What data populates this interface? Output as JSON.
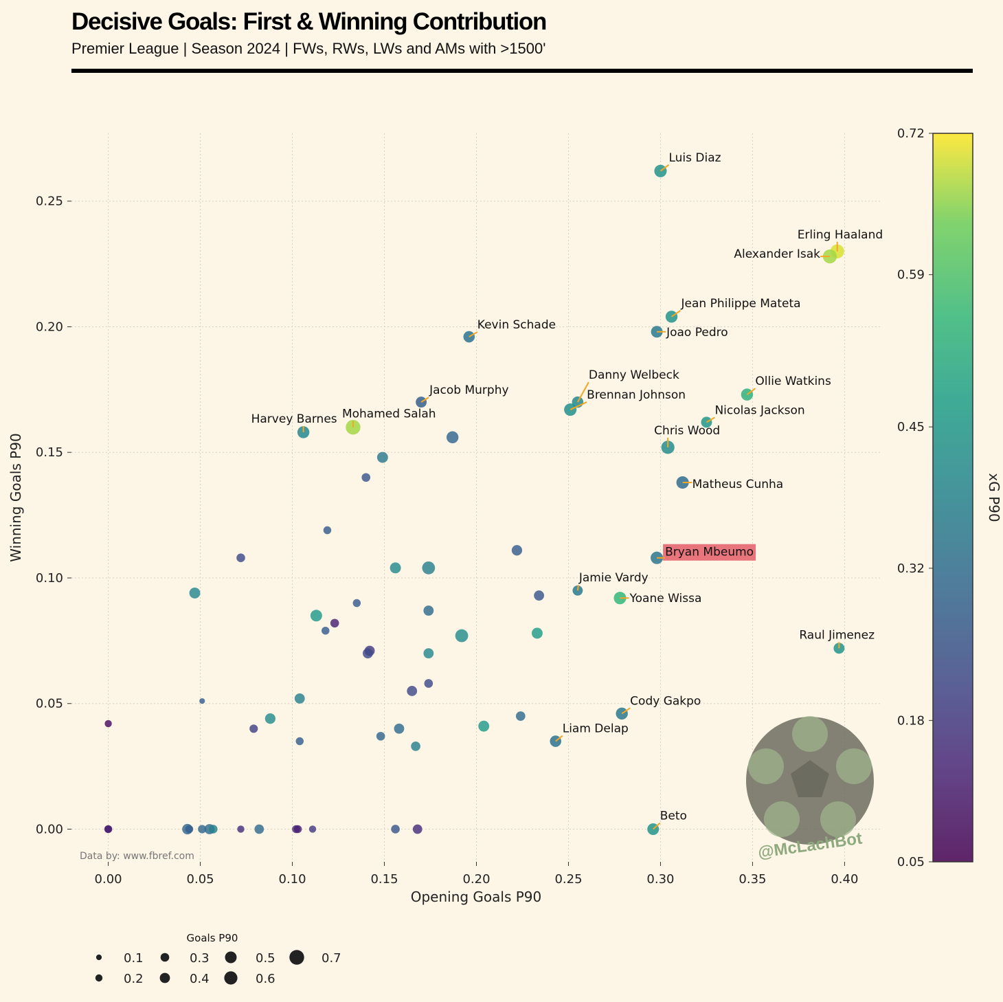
{
  "title": "Decisive Goals: First & Winning Contribution",
  "subtitle": "Premier League | Season 2024 | FWs, RWs, LWs and AMs with >1500'",
  "source": "Data by: www.fbref.com",
  "watermark": "@McLachBot",
  "highlight_color": "#e8747c",
  "annotation_color": "#f5a623",
  "chart_data": {
    "type": "scatter",
    "xlabel": "Opening Goals P90",
    "ylabel": "Winning Goals P90",
    "xlim": [
      -0.02,
      0.42
    ],
    "ylim": [
      -0.013,
      0.277
    ],
    "xticks": [
      "0.00",
      "0.05",
      "0.10",
      "0.15",
      "0.20",
      "0.25",
      "0.30",
      "0.35",
      "0.40"
    ],
    "yticks": [
      "0.00",
      "0.05",
      "0.10",
      "0.15",
      "0.20",
      "0.25"
    ],
    "grid": true,
    "colorbar": {
      "label": "xG P90",
      "min": 0.05,
      "max": 0.72,
      "ticks": [
        "0.05",
        "0.18",
        "0.32",
        "0.45",
        "0.59",
        "0.72"
      ],
      "colormap": "viridis"
    },
    "size_legend": {
      "title": "Goals P90",
      "values": [
        0.1,
        0.2,
        0.3,
        0.4,
        0.5,
        0.6,
        0.7
      ],
      "labels": [
        "0.1",
        "0.2",
        "0.3",
        "0.4",
        "0.5",
        "0.6",
        "0.7"
      ]
    },
    "labeled_points": [
      {
        "name": "Luis Diaz",
        "x": 0.3,
        "y": 0.262,
        "xg": 0.44,
        "goals": 0.55
      },
      {
        "name": "Erling Haaland",
        "x": 0.396,
        "y": 0.23,
        "xg": 0.7,
        "goals": 0.65
      },
      {
        "name": "Alexander Isak",
        "x": 0.392,
        "y": 0.228,
        "xg": 0.67,
        "goals": 0.65
      },
      {
        "name": "Jean Philippe Mateta",
        "x": 0.306,
        "y": 0.204,
        "xg": 0.44,
        "goals": 0.52
      },
      {
        "name": "Joao Pedro",
        "x": 0.298,
        "y": 0.198,
        "xg": 0.36,
        "goals": 0.5
      },
      {
        "name": "Kevin Schade",
        "x": 0.196,
        "y": 0.196,
        "xg": 0.34,
        "goals": 0.48
      },
      {
        "name": "Ollie Watkins",
        "x": 0.347,
        "y": 0.173,
        "xg": 0.53,
        "goals": 0.52
      },
      {
        "name": "Danny Welbeck",
        "x": 0.255,
        "y": 0.17,
        "xg": 0.4,
        "goals": 0.48
      },
      {
        "name": "Jacob Murphy",
        "x": 0.17,
        "y": 0.17,
        "xg": 0.28,
        "goals": 0.45
      },
      {
        "name": "Brennan Johnson",
        "x": 0.251,
        "y": 0.167,
        "xg": 0.43,
        "goals": 0.55
      },
      {
        "name": "Nicolas Jackson",
        "x": 0.325,
        "y": 0.162,
        "xg": 0.45,
        "goals": 0.45
      },
      {
        "name": "Mohamed Salah",
        "x": 0.133,
        "y": 0.16,
        "xg": 0.67,
        "goals": 0.7
      },
      {
        "name": "Harvey Barnes",
        "x": 0.106,
        "y": 0.158,
        "xg": 0.4,
        "goals": 0.52
      },
      {
        "name": "Chris Wood",
        "x": 0.304,
        "y": 0.152,
        "xg": 0.42,
        "goals": 0.6
      },
      {
        "name": "Matheus Cunha",
        "x": 0.312,
        "y": 0.138,
        "xg": 0.32,
        "goals": 0.55
      },
      {
        "name": "Bryan Mbeumo",
        "x": 0.298,
        "y": 0.108,
        "xg": 0.35,
        "goals": 0.55,
        "highlight": true
      },
      {
        "name": "Jamie Vardy",
        "x": 0.255,
        "y": 0.095,
        "xg": 0.36,
        "goals": 0.4
      },
      {
        "name": "Yoane Wissa",
        "x": 0.278,
        "y": 0.092,
        "xg": 0.55,
        "goals": 0.55
      },
      {
        "name": "Raul Jimenez",
        "x": 0.397,
        "y": 0.072,
        "xg": 0.44,
        "goals": 0.45
      },
      {
        "name": "Cody Gakpo",
        "x": 0.279,
        "y": 0.046,
        "xg": 0.36,
        "goals": 0.52
      },
      {
        "name": "Liam Delap",
        "x": 0.243,
        "y": 0.035,
        "xg": 0.34,
        "goals": 0.48
      },
      {
        "name": "Beto",
        "x": 0.296,
        "y": 0.0,
        "xg": 0.44,
        "goals": 0.5
      }
    ],
    "other_points": [
      {
        "x": 0.149,
        "y": 0.148,
        "xg": 0.36,
        "goals": 0.45
      },
      {
        "x": 0.187,
        "y": 0.156,
        "xg": 0.3,
        "goals": 0.52
      },
      {
        "x": 0.14,
        "y": 0.14,
        "xg": 0.25,
        "goals": 0.3
      },
      {
        "x": 0.119,
        "y": 0.119,
        "xg": 0.27,
        "goals": 0.25
      },
      {
        "x": 0.072,
        "y": 0.108,
        "xg": 0.22,
        "goals": 0.3
      },
      {
        "x": 0.222,
        "y": 0.111,
        "xg": 0.27,
        "goals": 0.42
      },
      {
        "x": 0.174,
        "y": 0.104,
        "xg": 0.38,
        "goals": 0.58
      },
      {
        "x": 0.156,
        "y": 0.104,
        "xg": 0.41,
        "goals": 0.45
      },
      {
        "x": 0.047,
        "y": 0.094,
        "xg": 0.4,
        "goals": 0.45
      },
      {
        "x": 0.234,
        "y": 0.093,
        "xg": 0.25,
        "goals": 0.4
      },
      {
        "x": 0.135,
        "y": 0.09,
        "xg": 0.27,
        "goals": 0.25
      },
      {
        "x": 0.174,
        "y": 0.087,
        "xg": 0.32,
        "goals": 0.4
      },
      {
        "x": 0.113,
        "y": 0.085,
        "xg": 0.46,
        "goals": 0.5
      },
      {
        "x": 0.123,
        "y": 0.082,
        "xg": 0.12,
        "goals": 0.3
      },
      {
        "x": 0.118,
        "y": 0.079,
        "xg": 0.27,
        "goals": 0.25
      },
      {
        "x": 0.192,
        "y": 0.077,
        "xg": 0.42,
        "goals": 0.58
      },
      {
        "x": 0.233,
        "y": 0.078,
        "xg": 0.47,
        "goals": 0.45
      },
      {
        "x": 0.142,
        "y": 0.071,
        "xg": 0.18,
        "goals": 0.4
      },
      {
        "x": 0.141,
        "y": 0.07,
        "xg": 0.22,
        "goals": 0.4
      },
      {
        "x": 0.174,
        "y": 0.07,
        "xg": 0.4,
        "goals": 0.4
      },
      {
        "x": 0.174,
        "y": 0.058,
        "xg": 0.22,
        "goals": 0.3
      },
      {
        "x": 0.165,
        "y": 0.055,
        "xg": 0.22,
        "goals": 0.4
      },
      {
        "x": 0.104,
        "y": 0.052,
        "xg": 0.38,
        "goals": 0.4
      },
      {
        "x": 0.051,
        "y": 0.051,
        "xg": 0.28,
        "goals": 0.1
      },
      {
        "x": 0.088,
        "y": 0.044,
        "xg": 0.42,
        "goals": 0.42
      },
      {
        "x": 0.224,
        "y": 0.045,
        "xg": 0.32,
        "goals": 0.35
      },
      {
        "x": 0.204,
        "y": 0.041,
        "xg": 0.46,
        "goals": 0.45
      },
      {
        "x": 0.0,
        "y": 0.042,
        "xg": 0.08,
        "goals": 0.2
      },
      {
        "x": 0.079,
        "y": 0.04,
        "xg": 0.2,
        "goals": 0.28
      },
      {
        "x": 0.158,
        "y": 0.04,
        "xg": 0.32,
        "goals": 0.4
      },
      {
        "x": 0.148,
        "y": 0.037,
        "xg": 0.3,
        "goals": 0.3
      },
      {
        "x": 0.104,
        "y": 0.035,
        "xg": 0.28,
        "goals": 0.25
      },
      {
        "x": 0.167,
        "y": 0.033,
        "xg": 0.38,
        "goals": 0.35
      },
      {
        "x": 0.0,
        "y": 0.0,
        "xg": 0.1,
        "goals": 0.25
      },
      {
        "x": 0.0,
        "y": 0.0,
        "xg": 0.12,
        "goals": 0.2
      },
      {
        "x": 0.043,
        "y": 0.0,
        "xg": 0.3,
        "goals": 0.42
      },
      {
        "x": 0.044,
        "y": 0.0,
        "xg": 0.28,
        "goals": 0.25
      },
      {
        "x": 0.051,
        "y": 0.0,
        "xg": 0.3,
        "goals": 0.28
      },
      {
        "x": 0.055,
        "y": 0.0,
        "xg": 0.32,
        "goals": 0.4
      },
      {
        "x": 0.057,
        "y": 0.0,
        "xg": 0.38,
        "goals": 0.3
      },
      {
        "x": 0.072,
        "y": 0.0,
        "xg": 0.15,
        "goals": 0.2
      },
      {
        "x": 0.082,
        "y": 0.0,
        "xg": 0.32,
        "goals": 0.35
      },
      {
        "x": 0.102,
        "y": 0.0,
        "xg": 0.15,
        "goals": 0.25
      },
      {
        "x": 0.103,
        "y": 0.0,
        "xg": 0.12,
        "goals": 0.25
      },
      {
        "x": 0.111,
        "y": 0.0,
        "xg": 0.18,
        "goals": 0.2
      },
      {
        "x": 0.156,
        "y": 0.0,
        "xg": 0.25,
        "goals": 0.3
      },
      {
        "x": 0.168,
        "y": 0.0,
        "xg": 0.15,
        "goals": 0.35
      }
    ]
  }
}
